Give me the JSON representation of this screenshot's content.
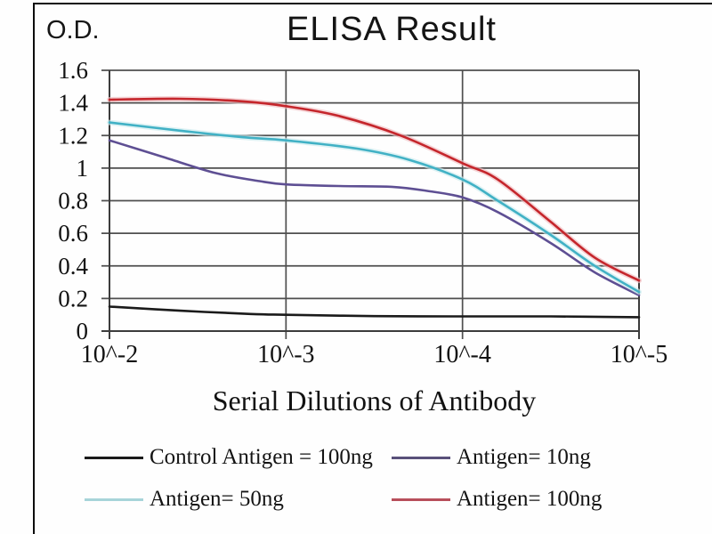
{
  "figure": {
    "title": "ELISA Result",
    "y_unit_label": "O.D.",
    "x_axis_title": "Serial Dilutions of Antibody"
  },
  "chart_data": {
    "type": "line",
    "title": "ELISA Result",
    "ylabel": "O.D.",
    "xlabel": "Serial Dilutions of Antibody",
    "grid": true,
    "legend_position": "bottom",
    "ylim": [
      0,
      1.6
    ],
    "x_tick_values": [
      0,
      1,
      2,
      3
    ],
    "x_tick_labels": [
      "10^-2",
      "10^-3",
      "10^-4",
      "10^-5"
    ],
    "y_tick_values": [
      0,
      0.2,
      0.4,
      0.6,
      0.8,
      1.0,
      1.2,
      1.4,
      1.6
    ],
    "y_tick_labels": [
      "0",
      "0.2",
      "0.4",
      "0.6",
      "0.8",
      "1",
      "1.2",
      "1.4",
      "1.6"
    ],
    "axis_color": "#3c3c3c",
    "grid_color": "#4f4f4f",
    "series": [
      {
        "name": "Control Antigen = 100ng",
        "color": "#1a1a1a",
        "legend_color": "#1a1a1a",
        "x": [
          0,
          0.4,
          0.8,
          1.0,
          1.5,
          2.0,
          2.5,
          3.0
        ],
        "y": [
          0.15,
          0.125,
          0.105,
          0.1,
          0.092,
          0.09,
          0.09,
          0.085
        ]
      },
      {
        "name": "Antigen= 10ng",
        "color": "#5e4f93",
        "legend_color": "#59507a",
        "x": [
          0,
          0.3,
          0.6,
          0.85,
          1.0,
          1.3,
          1.6,
          1.8,
          2.0,
          2.2,
          2.5,
          2.75,
          3.0
        ],
        "y": [
          1.17,
          1.07,
          0.97,
          0.92,
          0.9,
          0.89,
          0.885,
          0.86,
          0.82,
          0.73,
          0.54,
          0.36,
          0.22
        ]
      },
      {
        "name": "Antigen= 50ng",
        "color": "#41b1c5",
        "halo": "#cdebee",
        "legend_color": "#a7d4d9",
        "x": [
          0,
          0.4,
          0.75,
          1.0,
          1.4,
          1.7,
          2.0,
          2.2,
          2.5,
          2.75,
          3.0
        ],
        "y": [
          1.28,
          1.23,
          1.19,
          1.17,
          1.12,
          1.05,
          0.93,
          0.8,
          0.59,
          0.4,
          0.24
        ]
      },
      {
        "name": "Antigen= 100ng",
        "color": "#c5262c",
        "halo": "#f0bfc2",
        "legend_color": "#b84f5b",
        "x": [
          0,
          0.4,
          0.75,
          1.0,
          1.3,
          1.65,
          2.0,
          2.2,
          2.5,
          2.75,
          3.0
        ],
        "y": [
          1.42,
          1.425,
          1.41,
          1.38,
          1.32,
          1.2,
          1.03,
          0.93,
          0.67,
          0.45,
          0.31
        ]
      }
    ]
  }
}
